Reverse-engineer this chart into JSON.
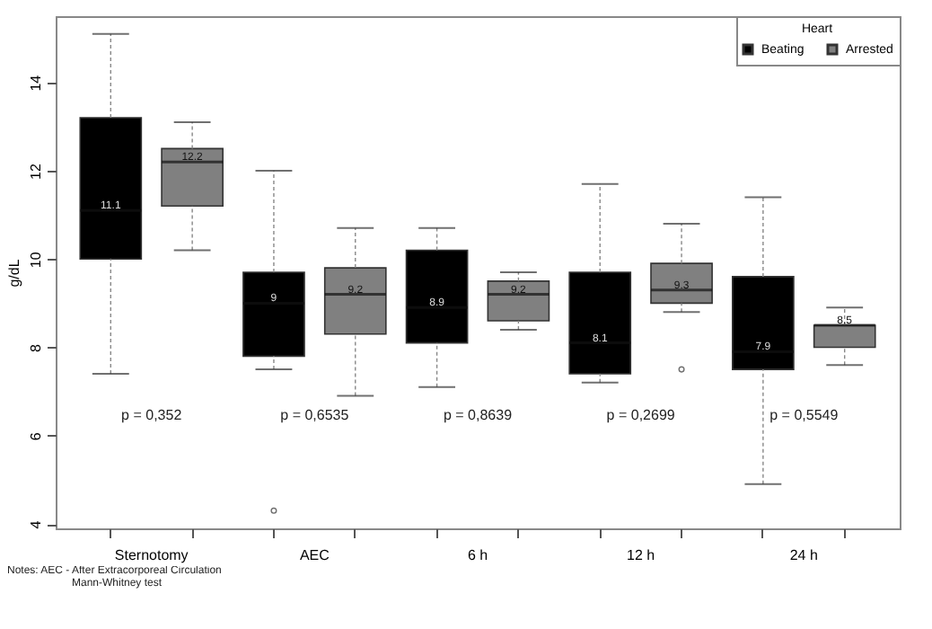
{
  "chart_data": {
    "type": "box",
    "ylabel": "g/dL",
    "legend_title": "Heart",
    "legend": "top right",
    "grid": false,
    "categories": [
      "Sternotomy",
      "AEC",
      "6 h",
      "12 h",
      "24 h"
    ],
    "ylim": [
      3.9,
      15.5
    ],
    "yticks": [
      4,
      6,
      8,
      10,
      12,
      14
    ],
    "series": [
      {
        "name": "Beating",
        "color": "#000000",
        "value_labels": [
          "11.1",
          "9",
          "8.9",
          "8.1",
          "7.9"
        ],
        "boxes": [
          {
            "low": 7.4,
            "q1": 10.0,
            "median": 11.1,
            "q3": 13.2,
            "high": 15.1
          },
          {
            "low": 7.5,
            "q1": 7.8,
            "median": 9,
            "q3": 9.7,
            "high": 12.0,
            "outliers": [
              4.3
            ]
          },
          {
            "low": 7.1,
            "q1": 8.1,
            "median": 8.9,
            "q3": 10.2,
            "high": 10.7
          },
          {
            "low": 7.2,
            "q1": 7.4,
            "median": 8.1,
            "q3": 9.7,
            "high": 11.7
          },
          {
            "low": 4.9,
            "q1": 7.5,
            "median": 7.9,
            "q3": 9.6,
            "high": 11.4
          }
        ]
      },
      {
        "name": "Arrested",
        "color": "#808080",
        "value_labels": [
          "12.2",
          "9.2",
          "9.2",
          "9.3",
          "8.5"
        ],
        "boxes": [
          {
            "low": 10.2,
            "q1": 11.2,
            "median": 12.2,
            "q3": 12.5,
            "high": 13.1
          },
          {
            "low": 6.9,
            "q1": 8.3,
            "median": 9.2,
            "q3": 9.8,
            "high": 10.7
          },
          {
            "low": 8.4,
            "q1": 8.6,
            "median": 9.2,
            "q3": 9.5,
            "high": 9.7
          },
          {
            "low": 8.8,
            "q1": 9.0,
            "median": 9.3,
            "q3": 9.9,
            "high": 10.8,
            "outliers": [
              7.5
            ]
          },
          {
            "low": 7.6,
            "q1": 8.0,
            "median": 8.5,
            "q3": 8.5,
            "high": 8.9
          }
        ]
      }
    ],
    "annotations": [
      "p = 0,352",
      "p = 0,6535",
      "p = 0,8639",
      "p = 0,2699",
      "p = 0,5549",
      "Notes: AEC - After Extracorporeal Circulation",
      "Mann-Whitney test"
    ]
  }
}
